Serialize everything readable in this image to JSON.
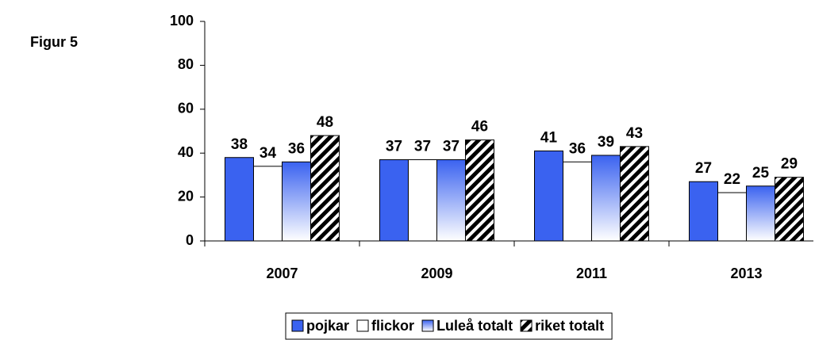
{
  "chart_data": {
    "type": "bar",
    "annotation": "Figur 5",
    "categories": [
      "2007",
      "2009",
      "2011",
      "2013"
    ],
    "series": [
      {
        "name": "pojkar",
        "color": "#3a62f0",
        "fill_style": "solid",
        "values": [
          38,
          37,
          41,
          27
        ]
      },
      {
        "name": "flickor",
        "color": "#ffffff",
        "fill_style": "solid",
        "values": [
          34,
          37,
          36,
          22
        ]
      },
      {
        "name": "Luleå totalt",
        "color": "#3a62f0",
        "fill_style": "gradient",
        "values": [
          36,
          37,
          39,
          25
        ]
      },
      {
        "name": "riket totalt",
        "color": "#000000",
        "fill_style": "hatch",
        "values": [
          48,
          46,
          43,
          29
        ]
      }
    ],
    "ylim": [
      0,
      100
    ],
    "yticks": [
      0,
      20,
      40,
      60,
      80,
      100
    ],
    "legend": "bottom"
  }
}
